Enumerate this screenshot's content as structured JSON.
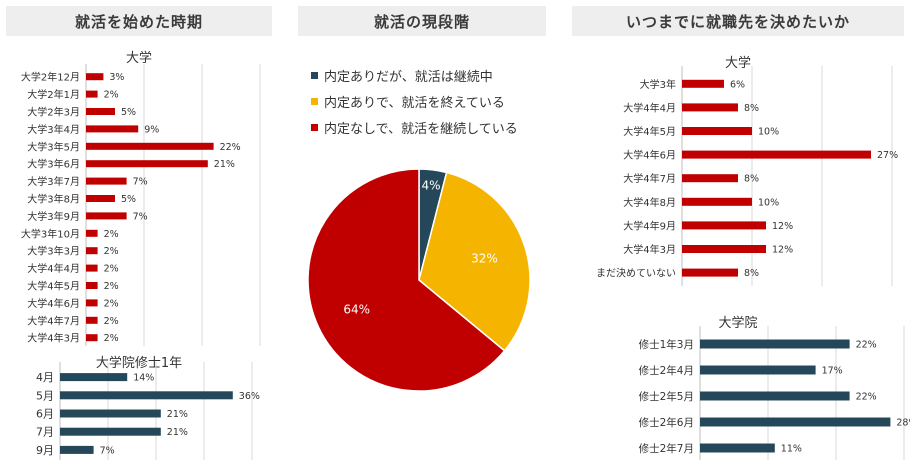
{
  "headers": {
    "left": "就活を始めた時期",
    "middle": "就活の現段階",
    "right": "いつまでに就職先を決めたいか"
  },
  "colors": {
    "red": "#c00000",
    "navy": "#24485a",
    "yellow": "#f5b400",
    "grid": "#d9d9d9"
  },
  "chart_data": [
    {
      "type": "bar",
      "orientation": "horizontal",
      "title": "大学",
      "categories": [
        "大学2年12月",
        "大学2年1月",
        "大学2年3月",
        "大学3年4月",
        "大学3年5月",
        "大学3年6月",
        "大学3年7月",
        "大学3年8月",
        "大学3年9月",
        "大学3年10月",
        "大学3年3月",
        "大学4年4月",
        "大学4年5月",
        "大学4年6月",
        "大学4年7月",
        "大学4年3月"
      ],
      "values": [
        3,
        2,
        5,
        9,
        22,
        21,
        7,
        5,
        7,
        2,
        2,
        2,
        2,
        2,
        2,
        2
      ],
      "unit": "%",
      "color": "#c00000"
    },
    {
      "type": "bar",
      "orientation": "horizontal",
      "title": "大学院修士1年",
      "categories": [
        "4月",
        "5月",
        "6月",
        "7月",
        "9月"
      ],
      "values": [
        14,
        36,
        21,
        21,
        7
      ],
      "unit": "%",
      "color": "#24485a"
    },
    {
      "type": "pie",
      "legend": [
        "内定ありだが、就活は継続中",
        "内定ありで、就活を終えている",
        "内定なしで、就活を継続している"
      ],
      "values": [
        4,
        32,
        64
      ],
      "unit": "%",
      "colors": [
        "#24485a",
        "#f5b400",
        "#c00000"
      ],
      "legend_position": "top"
    },
    {
      "type": "bar",
      "orientation": "horizontal",
      "title": "大学",
      "categories": [
        "大学3年",
        "大学4年4月",
        "大学4年5月",
        "大学4年6月",
        "大学4年7月",
        "大学4年8月",
        "大学4年9月",
        "大学4年3月",
        "まだ決めていない"
      ],
      "values": [
        6,
        8,
        10,
        27,
        8,
        10,
        12,
        12,
        8
      ],
      "unit": "%",
      "color": "#c00000"
    },
    {
      "type": "bar",
      "orientation": "horizontal",
      "title": "大学院",
      "categories": [
        "修士1年3月",
        "修士2年4月",
        "修士2年5月",
        "修士2年6月",
        "修士2年7月"
      ],
      "values": [
        22,
        17,
        22,
        28,
        11
      ],
      "unit": "%",
      "color": "#24485a"
    }
  ]
}
